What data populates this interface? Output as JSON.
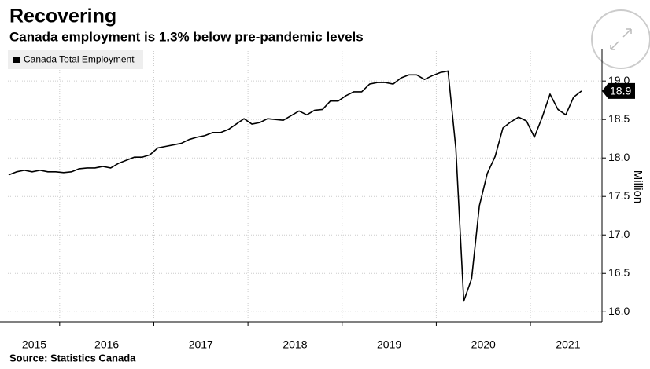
{
  "chart_data": {
    "type": "line",
    "title": "Recovering",
    "subtitle": "Canada employment is 1.3% below pre-pandemic levels",
    "y_axis_label": "Million",
    "source": "Source: Statistics Canada",
    "x": [
      2015.458,
      2015.542,
      2015.625,
      2015.708,
      2015.792,
      2015.875,
      2015.958,
      2016.042,
      2016.125,
      2016.208,
      2016.292,
      2016.375,
      2016.458,
      2016.542,
      2016.625,
      2016.708,
      2016.792,
      2016.875,
      2016.958,
      2017.042,
      2017.125,
      2017.208,
      2017.292,
      2017.375,
      2017.458,
      2017.542,
      2017.625,
      2017.708,
      2017.792,
      2017.875,
      2017.958,
      2018.042,
      2018.125,
      2018.208,
      2018.292,
      2018.375,
      2018.458,
      2018.542,
      2018.625,
      2018.708,
      2018.792,
      2018.875,
      2018.958,
      2019.042,
      2019.125,
      2019.208,
      2019.292,
      2019.375,
      2019.458,
      2019.542,
      2019.625,
      2019.708,
      2019.792,
      2019.875,
      2019.958,
      2020.042,
      2020.125,
      2020.208,
      2020.292,
      2020.375,
      2020.458,
      2020.542,
      2020.625,
      2020.708,
      2020.792,
      2020.875,
      2020.958,
      2021.042,
      2021.125,
      2021.208,
      2021.292,
      2021.375,
      2021.458,
      2021.542
    ],
    "series": [
      {
        "name": "Canada Total Employment",
        "color": "#000000",
        "values": [
          17.78,
          17.82,
          17.84,
          17.82,
          17.84,
          17.82,
          17.82,
          17.81,
          17.82,
          17.86,
          17.87,
          17.87,
          17.89,
          17.87,
          17.93,
          17.97,
          18.01,
          18.01,
          18.04,
          18.13,
          18.15,
          18.17,
          18.19,
          18.24,
          18.27,
          18.29,
          18.33,
          18.33,
          18.37,
          18.44,
          18.51,
          18.44,
          18.46,
          18.51,
          18.5,
          18.49,
          18.55,
          18.61,
          18.56,
          18.62,
          18.63,
          18.74,
          18.74,
          18.81,
          18.86,
          18.86,
          18.96,
          18.98,
          18.98,
          18.96,
          19.04,
          19.08,
          19.08,
          19.02,
          19.07,
          19.11,
          19.13,
          18.12,
          16.14,
          16.43,
          17.38,
          17.8,
          18.02,
          18.39,
          18.47,
          18.53,
          18.48,
          18.27,
          18.53,
          18.83,
          18.63,
          18.56,
          18.79,
          18.87
        ],
        "last_label": "18.9"
      }
    ],
    "xlim": [
      2015.45,
      2021.76
    ],
    "xticks": [
      {
        "value": 2015.73,
        "label": "2015"
      },
      {
        "value": 2016.5,
        "label": "2016"
      },
      {
        "value": 2017.5,
        "label": "2017"
      },
      {
        "value": 2018.5,
        "label": "2018"
      },
      {
        "value": 2019.5,
        "label": "2019"
      },
      {
        "value": 2020.5,
        "label": "2020"
      },
      {
        "value": 2021.4,
        "label": "2021"
      }
    ],
    "xgrid": [
      2016,
      2017,
      2018,
      2019,
      2020,
      2021
    ],
    "ylim": [
      15.87,
      19.42
    ],
    "yticks": [
      {
        "value": 16,
        "label": "16.0"
      },
      16.5,
      {
        "value": 17,
        "label": "17.0"
      },
      17.5,
      {
        "value": 18,
        "label": "18.0"
      },
      18.5,
      {
        "value": 19,
        "label": "19.0"
      }
    ],
    "grid": true
  }
}
